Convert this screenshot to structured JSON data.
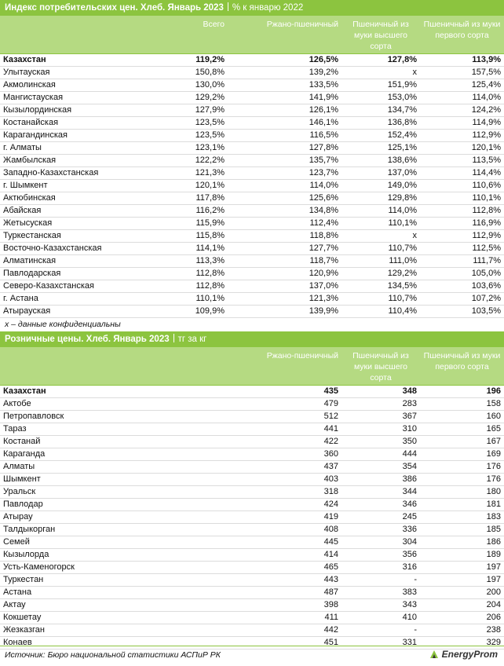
{
  "table1": {
    "title": "Индекс потребительских цен. Хлеб. Январь 2023",
    "subtitle": "% к январю 2022",
    "header": [
      "Всего",
      "Ржано-пшеничный",
      "Пшеничный из муки высшего сорта",
      "Пшеничный из муки первого сорта"
    ],
    "rows": [
      [
        "Казахстан",
        "119,2%",
        "126,5%",
        "127,8%",
        "113,9%"
      ],
      [
        "Улытауская",
        "150,8%",
        "139,2%",
        "х",
        "157,5%"
      ],
      [
        "Акмолинская",
        "130,0%",
        "133,5%",
        "151,9%",
        "125,4%"
      ],
      [
        "Мангистауская",
        "129,2%",
        "141,9%",
        "153,0%",
        "114,0%"
      ],
      [
        "Кызылординская",
        "127,9%",
        "126,1%",
        "134,7%",
        "124,2%"
      ],
      [
        "Костанайская",
        "123,5%",
        "146,1%",
        "136,8%",
        "114,9%"
      ],
      [
        "Карагандинская",
        "123,5%",
        "116,5%",
        "152,4%",
        "112,9%"
      ],
      [
        "г. Алматы",
        "123,1%",
        "127,8%",
        "125,1%",
        "120,1%"
      ],
      [
        "Жамбылская",
        "122,2%",
        "135,7%",
        "138,6%",
        "113,5%"
      ],
      [
        "Западно-Казахстанская",
        "121,3%",
        "123,7%",
        "137,0%",
        "114,4%"
      ],
      [
        "г. Шымкент",
        "120,1%",
        "114,0%",
        "149,0%",
        "110,6%"
      ],
      [
        "Актюбинская",
        "117,8%",
        "125,6%",
        "129,8%",
        "110,1%"
      ],
      [
        "Абайская",
        "116,2%",
        "134,8%",
        "114,0%",
        "112,8%"
      ],
      [
        "Жетысуская",
        "115,9%",
        "112,4%",
        "110,1%",
        "116,9%"
      ],
      [
        "Туркестанская",
        "115,8%",
        "118,8%",
        "х",
        "112,9%"
      ],
      [
        "Восточно-Казахстанская",
        "114,1%",
        "127,7%",
        "110,7%",
        "112,5%"
      ],
      [
        "Алматинская",
        "113,3%",
        "118,7%",
        "111,0%",
        "111,7%"
      ],
      [
        "Павлодарская",
        "112,8%",
        "120,9%",
        "129,2%",
        "105,0%"
      ],
      [
        "Северо-Казахстанская",
        "112,8%",
        "137,0%",
        "134,5%",
        "103,6%"
      ],
      [
        "г. Астана",
        "110,1%",
        "121,3%",
        "110,7%",
        "107,2%"
      ],
      [
        "Атырауская",
        "109,9%",
        "139,9%",
        "110,4%",
        "103,5%"
      ]
    ]
  },
  "note": "х – данные конфиденциальны",
  "table2": {
    "title": "Розничные цены. Хлеб. Январь 2023",
    "subtitle": "тг за кг",
    "header": [
      "Ржано-пшеничный",
      "Пшеничный из муки высшего сорта",
      "Пшеничный из муки первого сорта"
    ],
    "rows": [
      [
        "Казахстан",
        "435",
        "348",
        "196"
      ],
      [
        "Актобе",
        "479",
        "283",
        "158"
      ],
      [
        "Петропавловск",
        "512",
        "367",
        "160"
      ],
      [
        "Тараз",
        "441",
        "310",
        "165"
      ],
      [
        "Костанай",
        "422",
        "350",
        "167"
      ],
      [
        "Караганда",
        "360",
        "444",
        "169"
      ],
      [
        "Алматы",
        "437",
        "354",
        "176"
      ],
      [
        "Шымкент",
        "403",
        "386",
        "176"
      ],
      [
        "Уральск",
        "318",
        "344",
        "180"
      ],
      [
        "Павлодар",
        "424",
        "346",
        "181"
      ],
      [
        "Атырау",
        "419",
        "245",
        "183"
      ],
      [
        "Талдыкорган",
        "408",
        "336",
        "185"
      ],
      [
        "Семей",
        "445",
        "304",
        "186"
      ],
      [
        "Кызылорда",
        "414",
        "356",
        "189"
      ],
      [
        "Усть-Каменогорск",
        "465",
        "316",
        "197"
      ],
      [
        "Туркестан",
        "443",
        "-",
        "197"
      ],
      [
        "Астана",
        "487",
        "383",
        "200"
      ],
      [
        "Актау",
        "398",
        "343",
        "204"
      ],
      [
        "Кокшетау",
        "411",
        "410",
        "206"
      ],
      [
        "Жезказган",
        "442",
        "-",
        "238"
      ],
      [
        "Конаев",
        "451",
        "331",
        "329"
      ]
    ]
  },
  "source": "Источник: Бюро национальной статистики АСПиР РК",
  "logo": "EnergyProm"
}
